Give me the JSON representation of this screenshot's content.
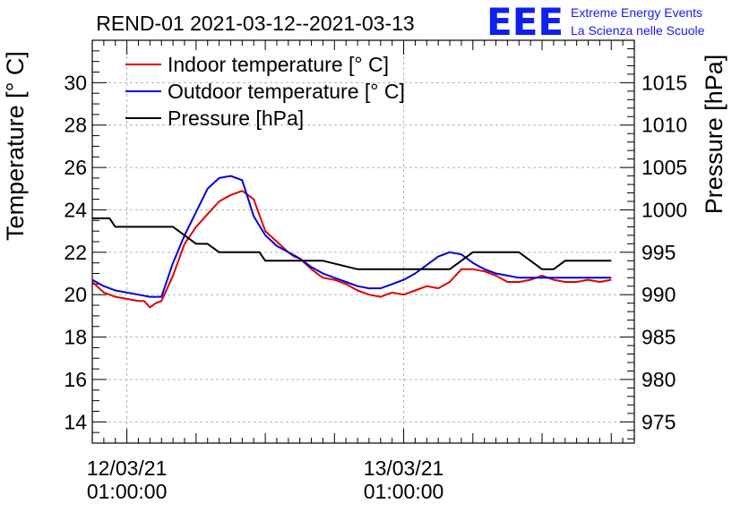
{
  "chart_data": {
    "type": "line",
    "title": "REND-01 2021-03-12--2021-03-13",
    "ylabel": "Temperature [° C]",
    "y2label": "Pressure [hPa]",
    "ylim": [
      13,
      32
    ],
    "y2lim": [
      972.5,
      1020
    ],
    "yticks": [
      14,
      16,
      18,
      20,
      22,
      24,
      26,
      28,
      30
    ],
    "y2ticks": [
      975,
      980,
      985,
      990,
      995,
      1000,
      1005,
      1010,
      1015
    ],
    "xlim": [
      -3,
      44
    ],
    "xticks": [
      {
        "at": 0,
        "line1": "12/03/21",
        "line2": "01:00:00"
      },
      {
        "at": 24,
        "line1": "13/03/21",
        "line2": "01:00:00"
      }
    ],
    "x_unit": "hours since 2021-03-12 01:00:00",
    "grid": true,
    "legend_position": "top-left",
    "series": [
      {
        "name": "Indoor temperature [° C]",
        "axis": "left",
        "color": "#e00000",
        "x": [
          -3,
          -2,
          -1,
          0,
          1,
          1.5,
          2,
          2.5,
          3,
          4,
          5,
          6,
          7,
          8,
          9,
          10,
          11,
          12,
          13,
          14,
          14.5,
          15,
          16,
          17,
          18,
          19,
          20,
          21,
          22,
          23,
          24,
          25,
          26,
          27,
          28,
          29,
          30,
          31,
          32,
          33,
          34,
          35,
          36,
          37,
          38,
          39,
          40,
          41,
          42
        ],
        "y": [
          20.6,
          20.1,
          19.9,
          19.8,
          19.7,
          19.7,
          19.4,
          19.6,
          19.7,
          20.9,
          22.4,
          23.2,
          23.8,
          24.4,
          24.7,
          24.9,
          24.5,
          23.0,
          22.5,
          22.0,
          21.8,
          21.7,
          21.2,
          20.8,
          20.7,
          20.5,
          20.2,
          20.0,
          19.9,
          20.1,
          20.0,
          20.2,
          20.4,
          20.3,
          20.6,
          21.2,
          21.2,
          21.1,
          20.9,
          20.6,
          20.6,
          20.7,
          20.9,
          20.7,
          20.6,
          20.6,
          20.7,
          20.6,
          20.7
        ]
      },
      {
        "name": "Outdoor temperature [° C]",
        "axis": "left",
        "color": "#0000dd",
        "x": [
          -3,
          -2,
          -1,
          0,
          1,
          2,
          3,
          4,
          5,
          6,
          7,
          8,
          9,
          10,
          11,
          12,
          13,
          14,
          15,
          16,
          17,
          18,
          19,
          20,
          21,
          22,
          23,
          24,
          25,
          26,
          27,
          28,
          29,
          30,
          31,
          32,
          33,
          34,
          35,
          36,
          37,
          38,
          39,
          40,
          41,
          42
        ],
        "y": [
          20.7,
          20.4,
          20.2,
          20.1,
          20.0,
          19.9,
          19.9,
          21.5,
          22.8,
          23.9,
          25.0,
          25.5,
          25.6,
          25.4,
          23.7,
          22.8,
          22.3,
          22.0,
          21.7,
          21.3,
          21.0,
          20.8,
          20.6,
          20.4,
          20.3,
          20.3,
          20.5,
          20.7,
          21.0,
          21.4,
          21.8,
          22.0,
          21.9,
          21.5,
          21.2,
          21.0,
          20.9,
          20.8,
          20.8,
          20.8,
          20.8,
          20.8,
          20.8,
          20.8,
          20.8,
          20.8
        ]
      },
      {
        "name": "Pressure [hPa]",
        "axis": "right",
        "color": "#000000",
        "x": [
          -3,
          -1.5,
          -1,
          4,
          6,
          7,
          8,
          11.5,
          12,
          17,
          20,
          24,
          25,
          28,
          29,
          30,
          34,
          36,
          37,
          38,
          42
        ],
        "y": [
          999,
          999,
          998,
          998,
          996,
          996,
          995,
          995,
          994,
          994,
          993,
          993,
          993,
          993,
          994,
          995,
          995,
          993,
          993,
          994,
          994
        ]
      }
    ]
  }
}
